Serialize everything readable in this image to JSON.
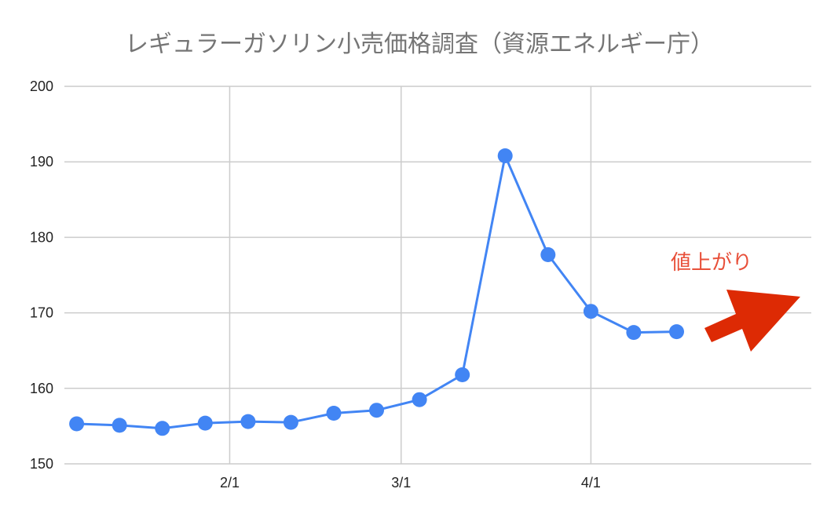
{
  "chart_data": {
    "type": "line",
    "title": "レギュラーガソリン小売価格調査（資源エネルギー庁）",
    "xlabel": "",
    "ylabel": "",
    "ylim": [
      150,
      200
    ],
    "yticks": [
      150,
      160,
      170,
      180,
      190,
      200
    ],
    "xticks": [
      {
        "label": "2/1",
        "x": "2022-02-01"
      },
      {
        "label": "3/1",
        "x": "2022-03-01"
      },
      {
        "label": "4/1",
        "x": "2022-04-01"
      }
    ],
    "xlim": [
      "2022-01-05",
      "2022-05-07"
    ],
    "grid": true,
    "legend": "none",
    "series": [
      {
        "color": "#4285f4",
        "points": [
          {
            "x": "2022-01-07",
            "y": 155.3
          },
          {
            "x": "2022-01-14",
            "y": 155.1
          },
          {
            "x": "2022-01-21",
            "y": 154.7
          },
          {
            "x": "2022-01-28",
            "y": 155.4
          },
          {
            "x": "2022-02-04",
            "y": 155.6
          },
          {
            "x": "2022-02-11",
            "y": 155.5
          },
          {
            "x": "2022-02-18",
            "y": 156.7
          },
          {
            "x": "2022-02-25",
            "y": 157.1
          },
          {
            "x": "2022-03-04",
            "y": 158.5
          },
          {
            "x": "2022-03-11",
            "y": 161.8
          },
          {
            "x": "2022-03-18",
            "y": 190.8
          },
          {
            "x": "2022-03-25",
            "y": 177.7
          },
          {
            "x": "2022-04-01",
            "y": 170.2
          },
          {
            "x": "2022-04-08",
            "y": 167.4
          },
          {
            "x": "2022-04-15",
            "y": 167.5
          }
        ]
      }
    ],
    "annotations": [
      {
        "text": "値上がり",
        "color": "#e8503a",
        "arrow_color": "#dd2a04",
        "arrow_direction": "up-right"
      }
    ]
  }
}
